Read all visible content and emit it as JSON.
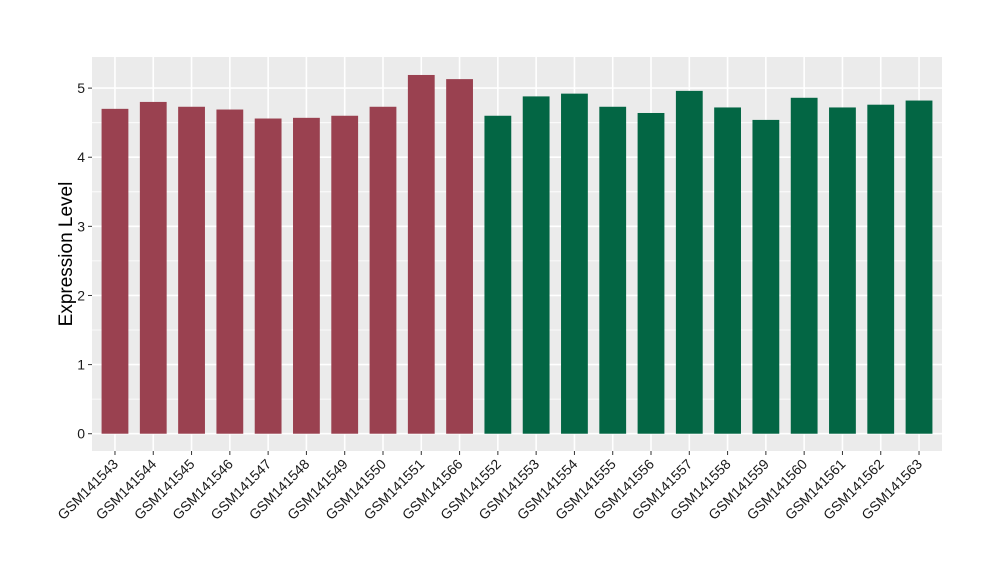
{
  "chart_data": {
    "type": "bar",
    "title": "",
    "xlabel": "",
    "ylabel": "Expression Level",
    "ylim": [
      -0.25,
      5.45
    ],
    "y_ticks": [
      "0",
      "1",
      "2",
      "3",
      "4",
      "5"
    ],
    "grid": true,
    "legend": "none",
    "categories": [
      "GSM141543",
      "GSM141544",
      "GSM141545",
      "GSM141546",
      "GSM141547",
      "GSM141548",
      "GSM141549",
      "GSM141550",
      "GSM141551",
      "GSM141566",
      "GSM141552",
      "GSM141553",
      "GSM141554",
      "GSM141555",
      "GSM141556",
      "GSM141557",
      "GSM141558",
      "GSM141559",
      "GSM141560",
      "GSM141561",
      "GSM141562",
      "GSM141563"
    ],
    "values": [
      4.7,
      4.8,
      4.73,
      4.69,
      4.56,
      4.57,
      4.6,
      4.73,
      5.19,
      5.13,
      4.6,
      4.88,
      4.92,
      4.73,
      4.64,
      4.96,
      4.72,
      4.54,
      4.86,
      4.72,
      4.76,
      4.82
    ],
    "groups": [
      0,
      0,
      0,
      0,
      0,
      0,
      0,
      0,
      0,
      0,
      1,
      1,
      1,
      1,
      1,
      1,
      1,
      1,
      1,
      1,
      1,
      1
    ],
    "group_colors": [
      "#9a4150",
      "#036644"
    ],
    "panel_color": "#ebebeb",
    "gridline_color": "#ffffff"
  }
}
